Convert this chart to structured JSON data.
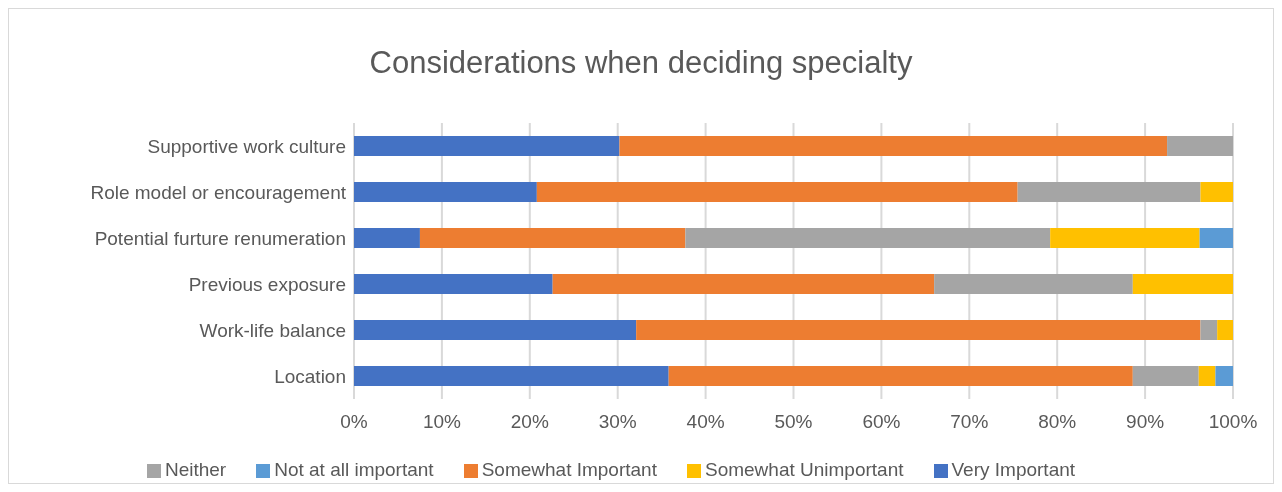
{
  "chart_data": {
    "type": "bar",
    "orientation": "horizontal",
    "stacked": true,
    "title": "Considerations when deciding specialty",
    "categories": [
      "Supportive work culture",
      "Role model or encouragement",
      "Potential furture renumeration",
      "Previous exposure",
      "Work-life balance",
      "Location"
    ],
    "series": [
      {
        "name": "Very Important",
        "color": "#4472c4",
        "values": [
          30.2,
          20.8,
          7.5,
          22.6,
          32.1,
          35.8
        ]
      },
      {
        "name": "Somewhat Important",
        "color": "#ed7d31",
        "values": [
          62.3,
          54.7,
          30.2,
          43.4,
          64.2,
          52.8
        ]
      },
      {
        "name": "Neither",
        "color": "#a5a5a5",
        "values": [
          7.5,
          20.8,
          41.5,
          22.6,
          1.9,
          7.5
        ]
      },
      {
        "name": "Somewhat Unimportant",
        "color": "#ffc000",
        "values": [
          null,
          3.7,
          17.0,
          11.4,
          1.8,
          1.9
        ]
      },
      {
        "name": "Not at all important",
        "color": "#5b9bd5",
        "values": [
          null,
          null,
          3.8,
          null,
          null,
          2.0
        ]
      }
    ],
    "xlim": [
      0,
      100
    ],
    "xticks": [
      {
        "value": 0,
        "label": "0%"
      },
      {
        "value": 10,
        "label": "10%"
      },
      {
        "value": 20,
        "label": "20%"
      },
      {
        "value": 30,
        "label": "30%"
      },
      {
        "value": 40,
        "label": "40%"
      },
      {
        "value": 50,
        "label": "50%"
      },
      {
        "value": 60,
        "label": "60%"
      },
      {
        "value": 70,
        "label": "70%"
      },
      {
        "value": 80,
        "label": "80%"
      },
      {
        "value": 90,
        "label": "90%"
      },
      {
        "value": 100,
        "label": "100%"
      }
    ],
    "grid": "x",
    "legend": "bottom"
  }
}
